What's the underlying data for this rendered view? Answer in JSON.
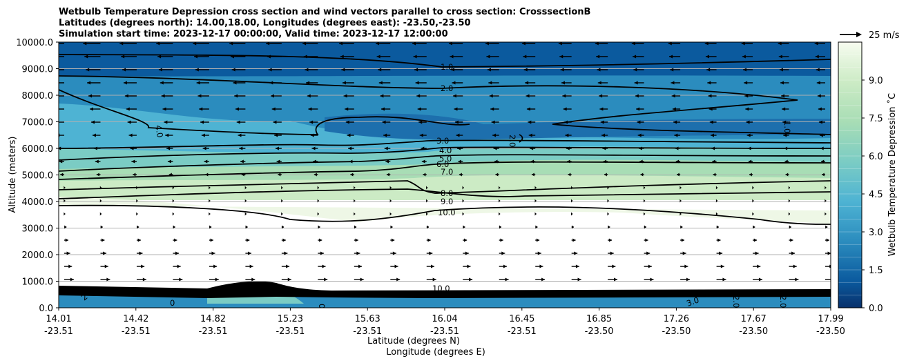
{
  "title_lines": [
    "Wetbulb Temperature Depression cross section and wind vectors parallel to cross section: CrosssectionB",
    "Latitudes (degrees north): 14.00,18.00, Longitudes (degrees east): -23.50,-23.50",
    "Simulation start time: 2023-12-17 00:00:00, Valid time: 2023-12-17 12:00:00"
  ],
  "quiver_key_label": "25 m/s",
  "colorbar_label": "Wetbulb Temperature Depression ˚C",
  "colors": {
    "low": "#08519c",
    "high": "#f2faea",
    "contour": "#000000",
    "grid": "#b0b0b0"
  },
  "chart_data": {
    "type": "contour",
    "ylabel": "Altitude (meters)",
    "xlabel_lines": [
      "Latitude (degrees N)",
      "Longitude (degrees E)"
    ],
    "ylim": [
      0,
      10000
    ],
    "y_ticks": [
      "0.0",
      "1000.0",
      "2000.0",
      "3000.0",
      "4000.0",
      "5000.0",
      "6000.0",
      "7000.0",
      "8000.0",
      "9000.0",
      "10000.0"
    ],
    "x_ticks": [
      {
        "lat": "14.01",
        "lon": "-23.51"
      },
      {
        "lat": "14.42",
        "lon": "-23.51"
      },
      {
        "lat": "14.82",
        "lon": "-23.51"
      },
      {
        "lat": "15.23",
        "lon": "-23.51"
      },
      {
        "lat": "15.63",
        "lon": "-23.51"
      },
      {
        "lat": "16.04",
        "lon": "-23.51"
      },
      {
        "lat": "16.45",
        "lon": "-23.51"
      },
      {
        "lat": "16.85",
        "lon": "-23.50"
      },
      {
        "lat": "17.26",
        "lon": "-23.50"
      },
      {
        "lat": "17.67",
        "lon": "-23.50"
      },
      {
        "lat": "17.99",
        "lon": "-23.50"
      }
    ],
    "colorbar_range": [
      0,
      10.5
    ],
    "colorbar_ticks": [
      "0.0",
      "1.5",
      "3.0",
      "4.5",
      "6.0",
      "7.5",
      "9.0"
    ],
    "grid": "horizontal",
    "contour_labels": [
      "1.0",
      "2.0",
      "3.0",
      "4.0",
      "5.0",
      "6.0",
      "7.0",
      "8.0",
      "9.0",
      "10.0",
      "4.0",
      "2.0",
      "1.0"
    ],
    "surface_labels": [
      "2",
      "0",
      "0",
      "3.0",
      "2.0",
      "2.0",
      "10.0",
      "8.0"
    ],
    "wind": "westward vectors aloft (above ~4500 m), weak eastward vectors below ~3500 m"
  }
}
